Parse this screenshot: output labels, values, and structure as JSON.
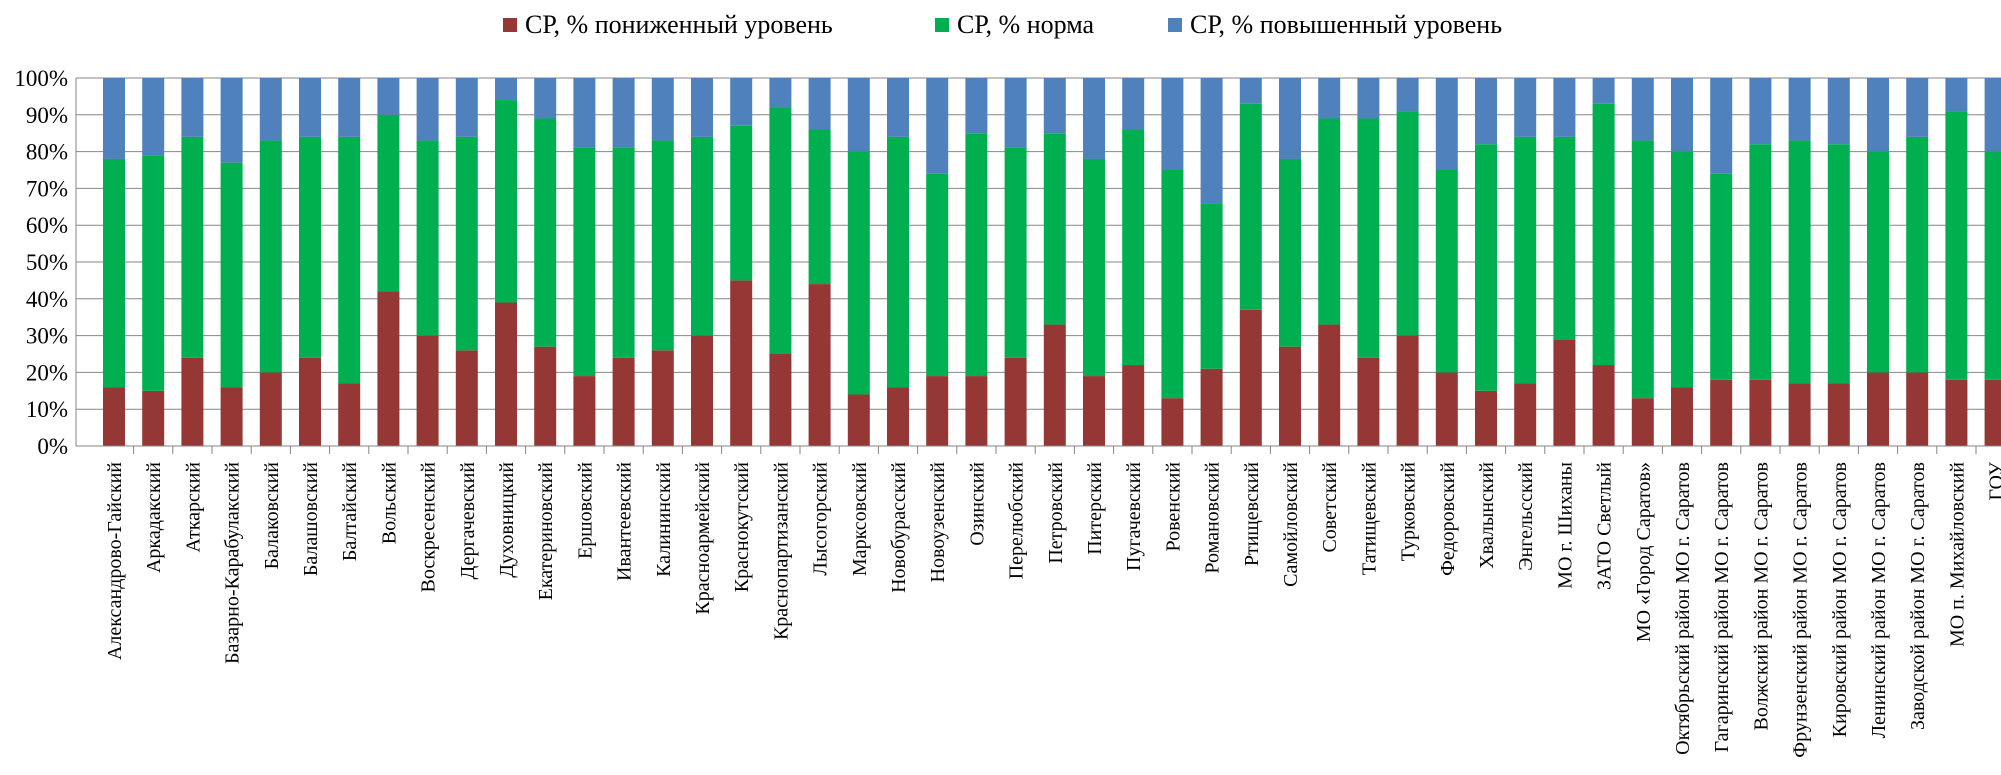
{
  "chart_data": {
    "type": "bar",
    "stacked": true,
    "percent_stacked": true,
    "categories": [
      "Александрово-Гайский",
      "Аркадакский",
      "Аткарский",
      "Базарно-Карабулакский",
      "Балаковский",
      "Балашовский",
      "Балтайский",
      "Вольский",
      "Воскресенский",
      "Дергачевский",
      "Духовницкий",
      "Екатериновский",
      "Ершовский",
      "Ивантеевский",
      "Калининский",
      "Красноармейский",
      "Краснокутский",
      "Краснопартизанский",
      "Лысогорский",
      "Марксовский",
      "Новобурасский",
      "Новоузенский",
      "Озинский",
      "Перелюбский",
      "Петровский",
      "Питерский",
      "Пугачевский",
      "Ровенский",
      "Романовский",
      "Ртищевский",
      "Самойловский",
      "Советский",
      "Татищевский",
      "Турковский",
      "Федоровский",
      "Хвалынский",
      "Энгельсский",
      "МО г. Шиханы",
      "ЗАТО Светлый",
      "МО «Город Саратов»",
      "Октябрьский район МО г. Саратов",
      "Гагаринский район МО г. Саратов",
      "Волжский район МО г. Саратов",
      "Фрунзенский район МО г. Саратов",
      "Кировский район МО г. Саратов",
      "Ленинский район МО г. Саратов",
      "Заводской район МО г. Саратов",
      "МО п. Михайловский",
      "ГОУ"
    ],
    "series": [
      {
        "name": "СР, % пониженный уровень",
        "color": "#953735",
        "values": [
          16,
          15,
          24,
          16,
          20,
          24,
          17,
          42,
          30,
          26,
          39,
          27,
          19,
          24,
          26,
          30,
          45,
          25,
          44,
          14,
          16,
          19,
          19,
          24,
          33,
          19,
          22,
          13,
          21,
          37,
          27,
          33,
          24,
          30,
          20,
          15,
          17,
          29,
          22,
          13,
          16,
          18,
          18,
          17,
          17,
          20,
          20,
          18,
          18
        ]
      },
      {
        "name": "СР, % норма",
        "color": "#00B050",
        "values": [
          62,
          64,
          60,
          61,
          63,
          60,
          67,
          48,
          53,
          58,
          55,
          62,
          62,
          57,
          57,
          54,
          42,
          67,
          42,
          66,
          68,
          55,
          66,
          57,
          52,
          59,
          64,
          62,
          45,
          56,
          51,
          56,
          65,
          61,
          55,
          67,
          67,
          55,
          71,
          70,
          64,
          56,
          64,
          66,
          65,
          60,
          64,
          73,
          62
        ]
      },
      {
        "name": "СР, % повышенный уровень",
        "color": "#4F81BD",
        "values": [
          22,
          21,
          16,
          23,
          17,
          16,
          16,
          10,
          17,
          16,
          6,
          11,
          19,
          19,
          17,
          16,
          13,
          8,
          14,
          20,
          16,
          26,
          15,
          19,
          15,
          22,
          14,
          25,
          34,
          7,
          22,
          11,
          11,
          9,
          25,
          18,
          16,
          16,
          7,
          17,
          20,
          26,
          18,
          17,
          18,
          20,
          16,
          9,
          20
        ]
      }
    ],
    "yaxis": {
      "ticks": [
        "0%",
        "10%",
        "20%",
        "30%",
        "40%",
        "50%",
        "60%",
        "70%",
        "80%",
        "90%",
        "100%"
      ],
      "ylim": [
        0,
        100
      ]
    },
    "grid": true,
    "legend_position": "top"
  }
}
